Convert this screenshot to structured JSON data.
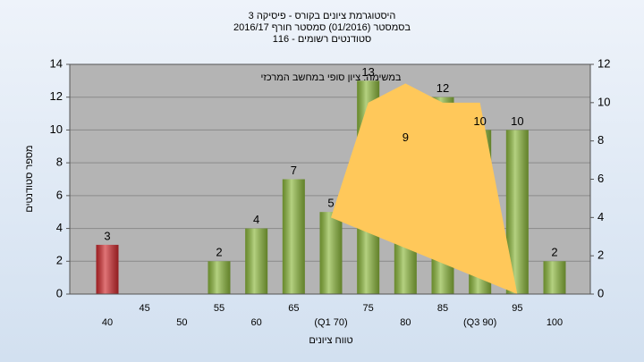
{
  "chart_data": {
    "type": "bar",
    "title": [
      "היסטוגרמת ציונים בקורס - פיסיקה 3",
      "בסמסטר  (01/2016)  סמסטר חורף 2016/17",
      "סטודנטים רשומים - 116"
    ],
    "annotation": "במשימה: ציון סופי במחשב המרכזי",
    "x_label": "טווח ציונים",
    "y_label": "מספר סטודנטים",
    "categories": [
      "40",
      "45",
      "50",
      "55",
      "60",
      "65",
      "(Q1 70)",
      "75",
      "80",
      "85",
      "(Q3 90)",
      "95",
      "100"
    ],
    "series": [
      {
        "values": [
          3,
          0,
          0,
          2,
          4,
          7,
          5,
          13,
          9,
          12,
          10,
          10,
          2
        ],
        "colors": [
          "#d02a2e",
          "#8cb83c",
          "#8cb83c",
          "#8cb83c",
          "#8cb83c",
          "#8cb83c",
          "#8cb83c",
          "#8cb83c",
          "#8cb83c",
          "#8cb83c",
          "#8cb83c",
          "#8cb83c",
          "#8cb83c"
        ]
      },
      {
        "type": "area",
        "axis": "y2",
        "color": "#ffc85a",
        "values": [
          null,
          null,
          null,
          null,
          null,
          null,
          4,
          10,
          11,
          10,
          10,
          0,
          null
        ]
      }
    ],
    "ylim": [
      0,
      14
    ],
    "yticks": [
      0,
      2,
      4,
      6,
      8,
      10,
      12,
      14
    ],
    "y2lim": [
      0,
      12
    ],
    "y2ticks": [
      0,
      2,
      4,
      6,
      8,
      10,
      12
    ],
    "grid": true
  }
}
